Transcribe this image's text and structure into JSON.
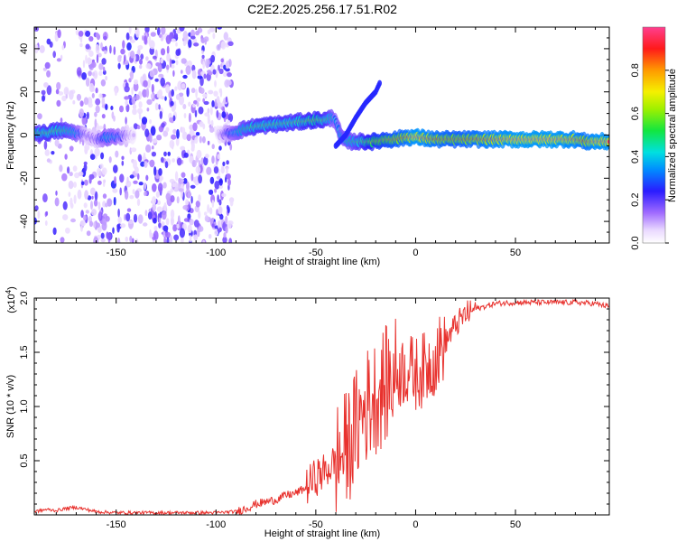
{
  "title": "C2E2.2025.256.17.51.R02",
  "chart_data": [
    {
      "type": "heatmap",
      "xlabel": "Height of straight line (km)",
      "ylabel": "Frequency (Hz)",
      "xlim": [
        -191,
        97
      ],
      "ylim": [
        -50,
        50
      ],
      "xticks": [
        -150,
        -100,
        -50,
        0,
        50
      ],
      "yticks": [
        -40,
        -20,
        0,
        20,
        40
      ],
      "colorbar": {
        "label": "Normalized spectral amplitude",
        "range": [
          0,
          1
        ],
        "ticks": [
          0.0,
          0.2,
          0.4,
          0.6,
          0.8
        ],
        "tick_labels": [
          "0.0",
          "0.2",
          "0.4",
          "0.6",
          "0.8"
        ]
      },
      "ridge": {
        "x": [
          -191,
          -185,
          -180,
          -175,
          -170,
          -165,
          -160,
          -155,
          -150,
          -145,
          -140,
          -120,
          -100,
          -92,
          -85,
          -80,
          -70,
          -60,
          -50,
          -45,
          -42,
          -40,
          -38,
          -35,
          -30,
          -25,
          -20,
          -15,
          -10,
          -5,
          0,
          10,
          20,
          30,
          40,
          50,
          60,
          70,
          80,
          85,
          90,
          97
        ],
        "freq": [
          1,
          1,
          2,
          2,
          1,
          0,
          -2,
          -1,
          -1,
          0,
          0,
          0,
          0,
          1,
          3,
          4,
          5,
          6,
          7,
          7,
          8,
          7,
          0,
          -3,
          -3,
          -3,
          -3,
          -2,
          -2,
          -1,
          -1,
          -2,
          -2,
          -2,
          -2,
          -2,
          -2,
          -2,
          -2,
          -3,
          -3,
          -3
        ],
        "amplitude": [
          0.55,
          0.6,
          0.6,
          0.55,
          0.45,
          0.2,
          0.2,
          0.45,
          0.4,
          0.2,
          0.05,
          0.05,
          0.05,
          0.4,
          0.55,
          0.6,
          0.6,
          0.6,
          0.65,
          0.6,
          0.5,
          0.4,
          0.45,
          0.5,
          0.55,
          0.65,
          0.75,
          0.8,
          0.85,
          0.9,
          1.0,
          0.9,
          0.85,
          0.9,
          0.95,
          1.0,
          1.0,
          1.0,
          0.95,
          0.9,
          0.98,
          0.98
        ]
      },
      "branch": {
        "x": [
          -40,
          -35,
          -30,
          -25,
          -20,
          -18
        ],
        "freq": [
          -5,
          0,
          8,
          15,
          20,
          24
        ]
      }
    },
    {
      "type": "line",
      "xlabel": "Height of straight line (km)",
      "ylabel": "SNR (10 * v/v)",
      "y_multiplier": "(x10^4)",
      "y_multiplier_base": "(x10",
      "y_multiplier_exp": "4",
      "xlim": [
        -191,
        97
      ],
      "ylim": [
        0,
        2.0
      ],
      "xticks": [
        -150,
        -100,
        -50,
        0,
        50
      ],
      "yticks": [
        0.5,
        1.0,
        1.5,
        2.0
      ],
      "ytick_labels": [
        "0.5",
        "1.0",
        "1.5",
        "2.0"
      ],
      "series": [
        {
          "name": "SNR",
          "color": "#e8322e",
          "x": [
            -191,
            -185,
            -180,
            -175,
            -170,
            -160,
            -150,
            -140,
            -130,
            -120,
            -110,
            -100,
            -90,
            -85,
            -80,
            -75,
            -70,
            -65,
            -60,
            -55,
            -50,
            -45,
            -40,
            -35,
            -30,
            -25,
            -20,
            -15,
            -10,
            -5,
            0,
            5,
            10,
            15,
            20,
            25,
            30,
            40,
            50,
            60,
            70,
            80,
            90,
            97
          ],
          "y": [
            0.03,
            0.05,
            0.04,
            0.06,
            0.07,
            0.03,
            0.02,
            0.02,
            0.02,
            0.02,
            0.02,
            0.02,
            0.03,
            0.06,
            0.1,
            0.12,
            0.14,
            0.18,
            0.2,
            0.25,
            0.35,
            0.4,
            0.5,
            0.6,
            0.8,
            1.0,
            1.1,
            1.2,
            1.3,
            1.35,
            1.3,
            1.35,
            1.45,
            1.6,
            1.75,
            1.85,
            1.9,
            1.95,
            1.96,
            1.96,
            1.96,
            1.96,
            1.95,
            1.92
          ]
        }
      ]
    }
  ],
  "colors": {
    "series": "#e8322e",
    "axis": "#000000"
  }
}
